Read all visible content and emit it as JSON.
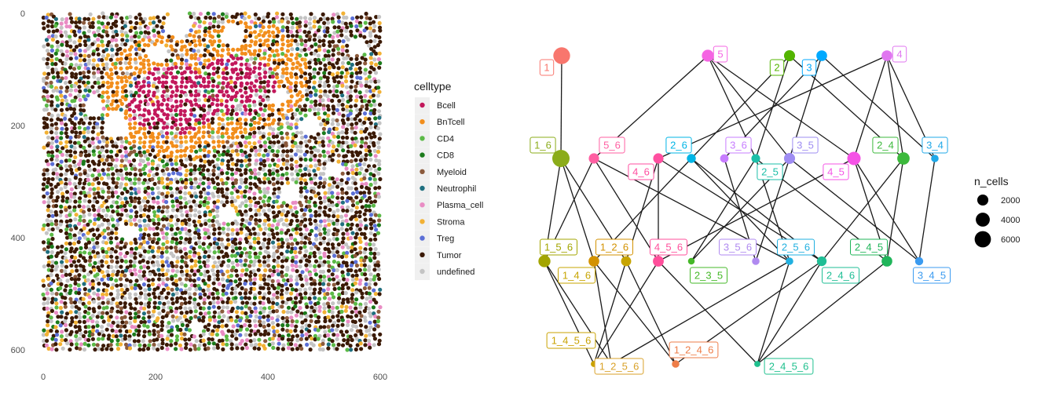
{
  "chart_data": [
    {
      "type": "scatter",
      "x_ticks": [
        "0",
        "200",
        "400",
        "600"
      ],
      "y_ticks": [
        "0",
        "200",
        "400",
        "600"
      ],
      "xlim": [
        0,
        600
      ],
      "ylim": [
        0,
        600
      ],
      "y_reversed": true,
      "grid": false,
      "legend": {
        "title": "celltype",
        "placement": "right",
        "entries": [
          {
            "name": "Bcell",
            "color": "#c2185b"
          },
          {
            "name": "BnTcell",
            "color": "#f28e1c"
          },
          {
            "name": "CD4",
            "color": "#5bb947"
          },
          {
            "name": "CD8",
            "color": "#1b7a1b"
          },
          {
            "name": "Myeloid",
            "color": "#8b5a3c"
          },
          {
            "name": "Neutrophil",
            "color": "#1f6f7f"
          },
          {
            "name": "Plasma_cell",
            "color": "#e98cc4"
          },
          {
            "name": "Stroma",
            "color": "#f2b134"
          },
          {
            "name": "Treg",
            "color": "#5b6fd6"
          },
          {
            "name": "Tumor",
            "color": "#3b1a06"
          },
          {
            "name": "undefined",
            "color": "#c4c4c4"
          }
        ]
      },
      "regions": [
        {
          "celltype": "BnTcell",
          "x_range": [
            120,
            420
          ],
          "y_range": [
            20,
            270
          ]
        },
        {
          "celltype": "Bcell",
          "x_range": [
            160,
            400
          ],
          "y_range": [
            60,
            240
          ]
        },
        {
          "celltype": "Tumor",
          "x_range": [
            0,
            600
          ],
          "y_range": [
            0,
            600
          ]
        }
      ]
    },
    {
      "type": "diagram",
      "size_legend": {
        "title": "n_cells",
        "values": [
          "2000",
          "4000",
          "6000"
        ]
      },
      "nodes": [
        {
          "id": "1",
          "color": "#f8766d",
          "n_cells": 6500
        },
        {
          "id": "5",
          "color": "#f564e3",
          "n_cells": 2500
        },
        {
          "id": "2",
          "color": "#53b400",
          "n_cells": 2000
        },
        {
          "id": "3",
          "color": "#00a9ff",
          "n_cells": 1800
        },
        {
          "id": "4",
          "color": "#e076f0",
          "n_cells": 1800
        },
        {
          "id": "1_6",
          "color": "#8bac1a",
          "n_cells": 7000
        },
        {
          "id": "5_6",
          "color": "#ff5fa2",
          "n_cells": 1600
        },
        {
          "id": "2_6",
          "color": "#00b5e6",
          "n_cells": 1000
        },
        {
          "id": "3_6",
          "color": "#c77cff",
          "n_cells": 800
        },
        {
          "id": "3_5",
          "color": "#9e8cf2",
          "n_cells": 2000
        },
        {
          "id": "2_4",
          "color": "#3cb93c",
          "n_cells": 2800
        },
        {
          "id": "3_4",
          "color": "#1fa8e8",
          "n_cells": 500
        },
        {
          "id": "4_6",
          "color": "#ff4fa0",
          "n_cells": 1600
        },
        {
          "id": "2_5",
          "color": "#1bbfa8",
          "n_cells": 900
        },
        {
          "id": "4_5",
          "color": "#f553e6",
          "n_cells": 3500
        },
        {
          "id": "1_5_6",
          "color": "#a3a500",
          "n_cells": 2600
        },
        {
          "id": "1_2_6",
          "color": "#d39200",
          "n_cells": 1800
        },
        {
          "id": "4_5_6",
          "color": "#ff4f9b",
          "n_cells": 1900
        },
        {
          "id": "3_5_6",
          "color": "#b08af0",
          "n_cells": 500
        },
        {
          "id": "2_5_6",
          "color": "#21b0e0",
          "n_cells": 500
        },
        {
          "id": "2_4_5",
          "color": "#20b55a",
          "n_cells": 1800
        },
        {
          "id": "1_4_6",
          "color": "#c7a400",
          "n_cells": 1500
        },
        {
          "id": "2_3_5",
          "color": "#45b828",
          "n_cells": 300
        },
        {
          "id": "2_4_6",
          "color": "#1fbe95",
          "n_cells": 1300
        },
        {
          "id": "3_4_5",
          "color": "#3b9bf0",
          "n_cells": 700
        },
        {
          "id": "1_4_5_6",
          "color": "#c9a200",
          "n_cells": 200
        },
        {
          "id": "1_2_4_6",
          "color": "#ee7d48",
          "n_cells": 500
        },
        {
          "id": "1_2_5_6",
          "color": "#d9a128",
          "n_cells": 200
        },
        {
          "id": "2_4_5_6",
          "color": "#1fc08e",
          "n_cells": 200
        }
      ],
      "edges": [
        [
          "1",
          "1_6"
        ],
        [
          "5",
          "5_6"
        ],
        [
          "5",
          "2_5"
        ],
        [
          "5",
          "3_5"
        ],
        [
          "5",
          "4_5"
        ],
        [
          "2",
          "2_6"
        ],
        [
          "2",
          "2_5"
        ],
        [
          "2",
          "2_4"
        ],
        [
          "3",
          "3_6"
        ],
        [
          "3",
          "3_5"
        ],
        [
          "3",
          "3_4"
        ],
        [
          "4",
          "4_6"
        ],
        [
          "4",
          "2_4"
        ],
        [
          "4",
          "3_4"
        ],
        [
          "4",
          "4_5"
        ],
        [
          "1_6",
          "1_5_6"
        ],
        [
          "1_6",
          "1_2_6"
        ],
        [
          "1_6",
          "1_4_6"
        ],
        [
          "5_6",
          "1_5_6"
        ],
        [
          "5_6",
          "4_5_6"
        ],
        [
          "5_6",
          "2_5_6"
        ],
        [
          "2_6",
          "1_2_6"
        ],
        [
          "2_6",
          "2_5_6"
        ],
        [
          "2_6",
          "2_4_6"
        ],
        [
          "3_6",
          "3_5_6"
        ],
        [
          "3_5",
          "3_5_6"
        ],
        [
          "3_5",
          "2_3_5"
        ],
        [
          "3_5",
          "3_4_5"
        ],
        [
          "2_5",
          "2_5_6"
        ],
        [
          "2_5",
          "2_3_5"
        ],
        [
          "2_5",
          "2_4_5"
        ],
        [
          "2_4",
          "2_4_5"
        ],
        [
          "2_4",
          "2_4_6"
        ],
        [
          "3_4",
          "3_4_5"
        ],
        [
          "4_6",
          "4_5_6"
        ],
        [
          "4_6",
          "1_4_6"
        ],
        [
          "4_6",
          "2_4_6"
        ],
        [
          "4_5",
          "4_5_6"
        ],
        [
          "4_5",
          "2_4_5"
        ],
        [
          "4_5",
          "3_4_5"
        ],
        [
          "1_5_6",
          "1_4_5_6"
        ],
        [
          "1_5_6",
          "1_2_5_6"
        ],
        [
          "1_2_6",
          "1_2_5_6"
        ],
        [
          "1_2_6",
          "1_2_4_6"
        ],
        [
          "4_5_6",
          "1_4_5_6"
        ],
        [
          "4_5_6",
          "2_4_5_6"
        ],
        [
          "2_5_6",
          "1_2_5_6"
        ],
        [
          "2_5_6",
          "2_4_5_6"
        ],
        [
          "2_4_5",
          "2_4_5_6"
        ],
        [
          "1_4_6",
          "1_4_5_6"
        ],
        [
          "1_4_6",
          "1_2_4_6"
        ],
        [
          "2_4_6",
          "1_2_4_6"
        ],
        [
          "2_4_6",
          "2_4_5_6"
        ]
      ]
    }
  ]
}
